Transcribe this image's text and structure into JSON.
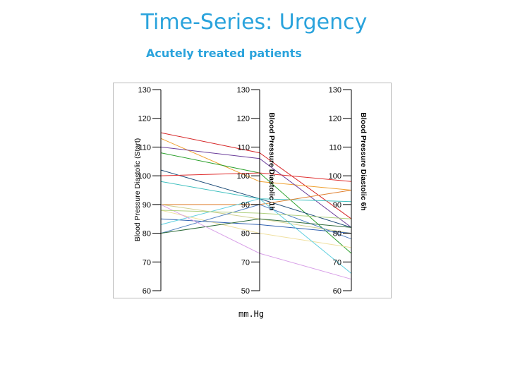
{
  "slide": {
    "title": "Time-Series: Urgency",
    "subtitle": "Acutely treated patients",
    "unit": "mm.Hg"
  },
  "chart_data": {
    "type": "line",
    "variant": "parallel-coordinates",
    "axes": [
      {
        "label": "Blood Pressure Diastolic (Start)",
        "ticks": [
          "60",
          "70",
          "80",
          "90",
          "100",
          "110",
          "120",
          "130"
        ]
      },
      {
        "label": "Blood Pressure Diastolic 1h",
        "ticks": [
          "50",
          "70",
          "80",
          "90",
          "100",
          "110",
          "120",
          "130"
        ]
      },
      {
        "label": "Blood Pressure Diastolic 6h",
        "ticks": [
          "60",
          "70",
          "80",
          "90",
          "100",
          "110",
          "120",
          "130"
        ]
      }
    ],
    "ylim": [
      60,
      130
    ],
    "grid": false,
    "series": [
      {
        "values": [
          115,
          108,
          85
        ],
        "color": "#d62728"
      },
      {
        "values": [
          113,
          98,
          95
        ],
        "color": "#f0a030"
      },
      {
        "values": [
          110,
          106,
          82
        ],
        "color": "#6a3d9a"
      },
      {
        "values": [
          108,
          101,
          73
        ],
        "color": "#2ca02c"
      },
      {
        "values": [
          102,
          92,
          82
        ],
        "color": "#1f4e79"
      },
      {
        "values": [
          100,
          101,
          98
        ],
        "color": "#e03030"
      },
      {
        "values": [
          98,
          92,
          91
        ],
        "color": "#40c0c0"
      },
      {
        "values": [
          90,
          90,
          95
        ],
        "color": "#e08030"
      },
      {
        "values": [
          90,
          85,
          80
        ],
        "color": "#d0d090"
      },
      {
        "values": [
          88,
          80,
          75
        ],
        "color": "#f0e0a0"
      },
      {
        "values": [
          85,
          83,
          80
        ],
        "color": "#3060b0"
      },
      {
        "values": [
          83,
          92,
          66
        ],
        "color": "#60d0e0"
      },
      {
        "values": [
          80,
          90,
          78
        ],
        "color": "#5080c0"
      },
      {
        "values": [
          80,
          85,
          82
        ],
        "color": "#2e6b3a"
      },
      {
        "values": [
          90,
          73,
          64
        ],
        "color": "#d8a0e8"
      },
      {
        "values": [
          88,
          87,
          85
        ],
        "color": "#b0d080"
      }
    ]
  }
}
